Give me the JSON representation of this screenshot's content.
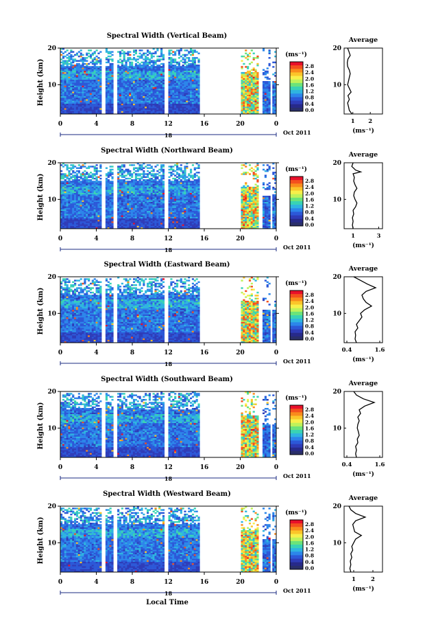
{
  "figure": {
    "xlabel": "Local Time",
    "date_label": "Oct 2011"
  },
  "colorbar": {
    "unit": "(ms⁻¹)",
    "ticks": [
      "2.8",
      "2.4",
      "2.0",
      "1.6",
      "1.2",
      "0.8",
      "0.4",
      "0.0"
    ],
    "colors": [
      "#e8102a",
      "#f4501e",
      "#f98c1c",
      "#fbc52a",
      "#f7ef4a",
      "#bff25a",
      "#6be37a",
      "#39d3b4",
      "#2fb4e0",
      "#2c86ea",
      "#2c58d8",
      "#2e3cb8",
      "#272a8a",
      "#2a2f6a"
    ]
  },
  "chart_data": [
    {
      "type": "heatmap",
      "title": "Spectral Width (Vertical Beam)",
      "ylabel": "Height (km)",
      "xlim": [
        0,
        24
      ],
      "ylim": [
        2,
        20
      ],
      "xticks": [
        "0",
        "4",
        "8",
        "12",
        "16",
        "20",
        "0"
      ],
      "yticks": [
        "10",
        "20"
      ],
      "day_label": "18",
      "avg": {
        "title": "Average",
        "xlabel": "(ms⁻¹)",
        "xticks": [
          "1",
          "2"
        ],
        "xlim": [
          0.5,
          2.7
        ],
        "profile": [
          [
            2,
            0.95
          ],
          [
            3,
            0.8
          ],
          [
            4,
            0.75
          ],
          [
            5,
            0.7
          ],
          [
            6,
            0.8
          ],
          [
            7,
            0.72
          ],
          [
            8,
            0.9
          ],
          [
            9,
            0.8
          ],
          [
            10,
            0.7
          ],
          [
            11,
            0.75
          ],
          [
            12,
            0.8
          ],
          [
            13,
            0.85
          ],
          [
            14,
            0.8
          ],
          [
            15,
            0.7
          ],
          [
            16,
            0.68
          ],
          [
            17,
            0.72
          ],
          [
            18,
            0.85
          ],
          [
            19,
            0.78
          ],
          [
            20,
            0.7
          ]
        ]
      }
    },
    {
      "type": "heatmap",
      "title": "Spectral Width (Northward Beam)",
      "ylabel": "Height (km)",
      "xlim": [
        0,
        24
      ],
      "ylim": [
        2,
        20
      ],
      "xticks": [
        "0",
        "4",
        "8",
        "12",
        "16",
        "20",
        "0"
      ],
      "yticks": [
        "10",
        "20"
      ],
      "day_label": "18",
      "avg": {
        "title": "Average",
        "xlabel": "(ms⁻¹)",
        "xticks": [
          "1",
          "3"
        ],
        "xlim": [
          0.3,
          3.3
        ],
        "profile": [
          [
            2,
            1.0
          ],
          [
            3,
            0.95
          ],
          [
            4,
            1.0
          ],
          [
            5,
            0.95
          ],
          [
            6,
            1.05
          ],
          [
            7,
            1.0
          ],
          [
            8,
            1.2
          ],
          [
            9,
            1.3
          ],
          [
            10,
            1.15
          ],
          [
            11,
            1.05
          ],
          [
            12,
            1.1
          ],
          [
            13,
            1.3
          ],
          [
            14,
            1.15
          ],
          [
            15,
            1.05
          ],
          [
            16,
            1.1
          ],
          [
            17,
            1.0
          ],
          [
            17.5,
            1.6
          ],
          [
            18,
            1.2
          ],
          [
            19,
            0.9
          ],
          [
            20,
            1.0
          ]
        ]
      }
    },
    {
      "type": "heatmap",
      "title": "Spectral Width (Eastward Beam)",
      "ylabel": "Height (km)",
      "xlim": [
        0,
        24
      ],
      "ylim": [
        2,
        20
      ],
      "xticks": [
        "0",
        "4",
        "8",
        "12",
        "16",
        "20",
        "0"
      ],
      "yticks": [
        "10",
        "20"
      ],
      "day_label": "18",
      "avg": {
        "title": "Average",
        "xlabel": "(ms⁻¹)",
        "xticks": [
          "0.4",
          "1.6"
        ],
        "xlim": [
          0.3,
          1.7
        ],
        "profile": [
          [
            2,
            0.75
          ],
          [
            3,
            0.7
          ],
          [
            4,
            0.72
          ],
          [
            5,
            0.7
          ],
          [
            6,
            0.8
          ],
          [
            7,
            0.75
          ],
          [
            8,
            0.85
          ],
          [
            9,
            0.95
          ],
          [
            10,
            0.9
          ],
          [
            11,
            1.05
          ],
          [
            12,
            1.3
          ],
          [
            13,
            1.1
          ],
          [
            14,
            1.0
          ],
          [
            15,
            0.95
          ],
          [
            16,
            1.1
          ],
          [
            17,
            1.45
          ],
          [
            18,
            1.15
          ],
          [
            19,
            0.9
          ],
          [
            20,
            0.65
          ]
        ]
      }
    },
    {
      "type": "heatmap",
      "title": "Spectral Width (Southward Beam)",
      "ylabel": "Height (km)",
      "xlim": [
        0,
        24
      ],
      "ylim": [
        2,
        20
      ],
      "xticks": [
        "0",
        "4",
        "8",
        "12",
        "16",
        "20",
        "0"
      ],
      "yticks": [
        "10",
        "20"
      ],
      "day_label": "18",
      "avg": {
        "title": "Average",
        "xlabel": "(ms⁻¹)",
        "xticks": [
          "0.4",
          "1.6"
        ],
        "xlim": [
          0.3,
          1.7
        ],
        "profile": [
          [
            2,
            0.75
          ],
          [
            3,
            0.72
          ],
          [
            4,
            0.75
          ],
          [
            5,
            0.72
          ],
          [
            6,
            0.8
          ],
          [
            7,
            0.78
          ],
          [
            8,
            0.85
          ],
          [
            9,
            0.82
          ],
          [
            10,
            0.78
          ],
          [
            11,
            0.8
          ],
          [
            12,
            0.85
          ],
          [
            13,
            0.8
          ],
          [
            14,
            0.9
          ],
          [
            15,
            0.85
          ],
          [
            16,
            1.05
          ],
          [
            17,
            1.4
          ],
          [
            18,
            1.0
          ],
          [
            19,
            0.75
          ],
          [
            20,
            0.65
          ]
        ]
      }
    },
    {
      "type": "heatmap",
      "title": "Spectral Width (Westward Beam)",
      "ylabel": "Height (km)",
      "xlim": [
        0,
        24
      ],
      "ylim": [
        2,
        20
      ],
      "xticks": [
        "0",
        "4",
        "8",
        "12",
        "16",
        "20",
        "0"
      ],
      "yticks": [
        "10",
        "20"
      ],
      "day_label": "18",
      "avg": {
        "title": "Average",
        "xlabel": "(ms⁻¹)",
        "xticks": [
          "1",
          "2"
        ],
        "xlim": [
          0.5,
          2.5
        ],
        "profile": [
          [
            2,
            0.85
          ],
          [
            3,
            0.8
          ],
          [
            4,
            0.85
          ],
          [
            5,
            0.82
          ],
          [
            6,
            0.9
          ],
          [
            7,
            0.85
          ],
          [
            8,
            0.95
          ],
          [
            9,
            0.9
          ],
          [
            10,
            1.0
          ],
          [
            11,
            1.1
          ],
          [
            12,
            1.4
          ],
          [
            13,
            1.05
          ],
          [
            14,
            1.0
          ],
          [
            15,
            0.95
          ],
          [
            16,
            1.1
          ],
          [
            17,
            1.6
          ],
          [
            18,
            1.1
          ],
          [
            19,
            0.85
          ],
          [
            20,
            0.75
          ]
        ]
      }
    }
  ]
}
